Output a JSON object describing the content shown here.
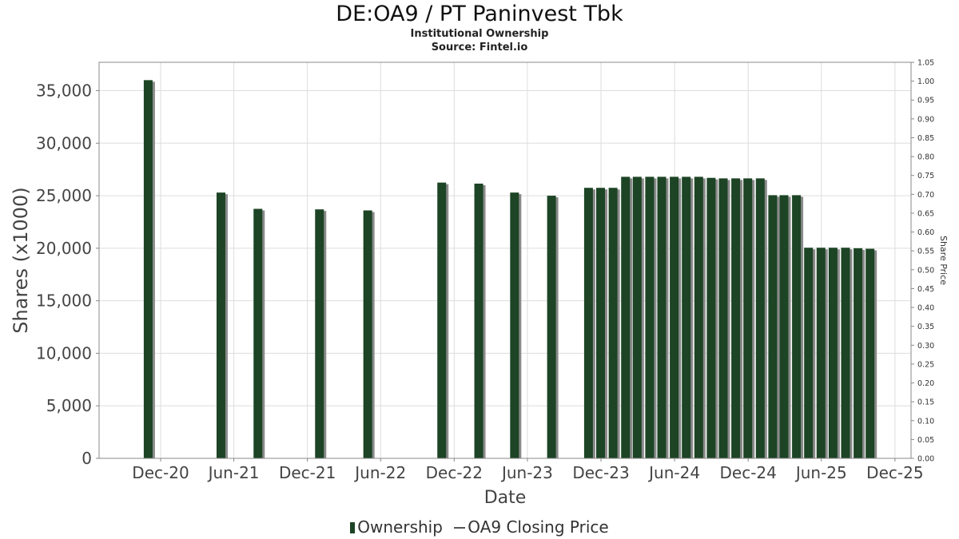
{
  "header": {
    "title": "DE:OA9 / PT Paninvest Tbk",
    "subtitle": "Institutional Ownership",
    "source": "Source: Fintel.io"
  },
  "legend": {
    "ownership": "Ownership",
    "price": "OA9 Closing Price"
  },
  "colors": {
    "bar": "#1c4425",
    "bar_shadow": "#8a8a8a",
    "grid": "#dddddd"
  },
  "chart_data": {
    "type": "bar",
    "xlabel": "Date",
    "ylabel": "Shares (x1000)",
    "y2label": "Share Price",
    "ylim": [
      0,
      37700
    ],
    "y_ticks": [
      0,
      5000,
      10000,
      15000,
      20000,
      25000,
      30000,
      35000
    ],
    "y_tick_labels": [
      "0",
      "5,000",
      "10,000",
      "15,000",
      "20,000",
      "25,000",
      "30,000",
      "35,000"
    ],
    "y2lim": [
      0,
      1.05
    ],
    "y2_tick_labels": [
      "0.00",
      "0.05",
      "0.10",
      "0.15",
      "0.20",
      "0.25",
      "0.30",
      "0.35",
      "0.40",
      "0.45",
      "0.50",
      "0.55",
      "0.60",
      "0.65",
      "0.70",
      "0.75",
      "0.80",
      "0.85",
      "0.90",
      "0.95",
      "1.00",
      "1.05"
    ],
    "x_ticks": [
      {
        "date": "2020-12-01",
        "label": "Dec-20"
      },
      {
        "date": "2021-06-01",
        "label": "Jun-21"
      },
      {
        "date": "2021-12-01",
        "label": "Dec-21"
      },
      {
        "date": "2022-06-01",
        "label": "Jun-22"
      },
      {
        "date": "2022-12-01",
        "label": "Dec-22"
      },
      {
        "date": "2023-06-01",
        "label": "Jun-23"
      },
      {
        "date": "2023-12-01",
        "label": "Dec-23"
      },
      {
        "date": "2024-06-01",
        "label": "Jun-24"
      },
      {
        "date": "2024-12-01",
        "label": "Dec-24"
      },
      {
        "date": "2025-06-01",
        "label": "Jun-25"
      },
      {
        "date": "2025-12-01",
        "label": "Dec-25"
      }
    ],
    "xlim": [
      "2020-07-01",
      "2026-01-10"
    ],
    "grid": true,
    "series": [
      {
        "name": "Ownership",
        "type": "bar",
        "points": [
          {
            "date": "2020-10-31",
            "value": 36000
          },
          {
            "date": "2021-04-30",
            "value": 25300
          },
          {
            "date": "2021-07-31",
            "value": 23750
          },
          {
            "date": "2021-12-31",
            "value": 23700
          },
          {
            "date": "2022-04-30",
            "value": 23600
          },
          {
            "date": "2022-10-31",
            "value": 26250
          },
          {
            "date": "2023-01-31",
            "value": 26150
          },
          {
            "date": "2023-04-30",
            "value": 25300
          },
          {
            "date": "2023-07-31",
            "value": 25000
          },
          {
            "date": "2023-10-31",
            "value": 25750
          },
          {
            "date": "2023-11-30",
            "value": 25750
          },
          {
            "date": "2023-12-31",
            "value": 25750
          },
          {
            "date": "2024-01-31",
            "value": 26800
          },
          {
            "date": "2024-02-29",
            "value": 26800
          },
          {
            "date": "2024-03-31",
            "value": 26800
          },
          {
            "date": "2024-04-30",
            "value": 26800
          },
          {
            "date": "2024-05-31",
            "value": 26800
          },
          {
            "date": "2024-06-30",
            "value": 26800
          },
          {
            "date": "2024-07-31",
            "value": 26800
          },
          {
            "date": "2024-08-31",
            "value": 26700
          },
          {
            "date": "2024-09-30",
            "value": 26650
          },
          {
            "date": "2024-10-31",
            "value": 26650
          },
          {
            "date": "2024-11-30",
            "value": 26650
          },
          {
            "date": "2024-12-31",
            "value": 26650
          },
          {
            "date": "2025-01-31",
            "value": 25050
          },
          {
            "date": "2025-02-28",
            "value": 25050
          },
          {
            "date": "2025-03-31",
            "value": 25050
          },
          {
            "date": "2025-04-30",
            "value": 20050
          },
          {
            "date": "2025-05-31",
            "value": 20050
          },
          {
            "date": "2025-06-30",
            "value": 20050
          },
          {
            "date": "2025-07-31",
            "value": 20050
          },
          {
            "date": "2025-08-31",
            "value": 20000
          },
          {
            "date": "2025-09-30",
            "value": 19950
          }
        ]
      }
    ]
  }
}
